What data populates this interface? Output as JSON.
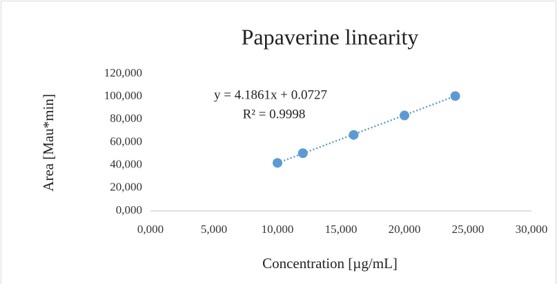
{
  "chart_data": {
    "type": "scatter",
    "title": "Papaverine linearity",
    "x_label": "Concentration [µg/mL]",
    "y_label": "Area [Mau*min]",
    "annotations": [
      "y = 4.1861x + 0.0727",
      "R² = 0.9998"
    ],
    "x": [
      10,
      12,
      16,
      20,
      24
    ],
    "values": [
      42,
      50.5,
      66.5,
      83.5,
      100.5
    ],
    "color": "#5b9bd5",
    "trendline": {
      "x": [
        10,
        24
      ],
      "values": [
        41.9,
        100.5
      ]
    },
    "xlim": [
      0,
      30
    ],
    "ylim": [
      0,
      120
    ],
    "xticks": [
      {
        "value": 0,
        "label": "0,000"
      },
      {
        "value": 5,
        "label": "5,000"
      },
      {
        "value": 10,
        "label": "10,000"
      },
      {
        "value": 15,
        "label": "15,000"
      },
      {
        "value": 20,
        "label": "20,000"
      },
      {
        "value": 25,
        "label": "25,000"
      },
      {
        "value": 30,
        "label": "30,000"
      }
    ],
    "yticks": [
      {
        "value": 0,
        "label": "0,000"
      },
      {
        "value": 20,
        "label": "20,000"
      },
      {
        "value": 40,
        "label": "40,000"
      },
      {
        "value": 60,
        "label": "60,000"
      },
      {
        "value": 80,
        "label": "80,000"
      },
      {
        "value": 100,
        "label": "100,000"
      },
      {
        "value": 120,
        "label": "120,000"
      }
    ]
  }
}
